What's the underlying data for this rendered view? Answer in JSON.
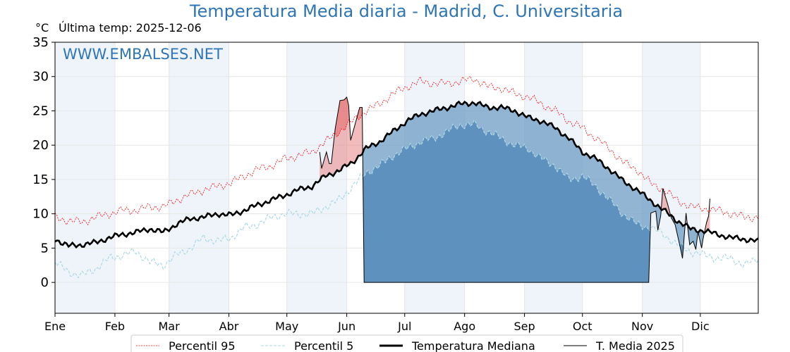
{
  "chart_data": {
    "type": "line",
    "title": "Temperatura Media diaria - Madrid, C. Universitaria",
    "unit_label": "°C",
    "subtitle": "Última temp: 2025-12-06",
    "watermark": "WWW.EMBALSES.NET",
    "ylim": [
      -4.5,
      35
    ],
    "xlim_days": [
      0,
      364
    ],
    "yticks": [
      0,
      5,
      10,
      15,
      20,
      25,
      30,
      35
    ],
    "months": [
      {
        "label": "Ene",
        "day": 0
      },
      {
        "label": "Feb",
        "day": 31
      },
      {
        "label": "Mar",
        "day": 59
      },
      {
        "label": "Abr",
        "day": 90
      },
      {
        "label": "May",
        "day": 120
      },
      {
        "label": "Jun",
        "day": 151
      },
      {
        "label": "Jul",
        "day": 181
      },
      {
        "label": "Ago",
        "day": 212
      },
      {
        "label": "Sep",
        "day": 243
      },
      {
        "label": "Oct",
        "day": 273
      },
      {
        "label": "Nov",
        "day": 304
      },
      {
        "label": "Dic",
        "day": 334
      }
    ],
    "grid": true,
    "legend_position": "bottom-center",
    "colors": {
      "p95": "#ff0000",
      "p5": "#add8e6",
      "median": "#000000",
      "t2025": "#000000",
      "above": "#e87a7a",
      "below": "#6e9cc4",
      "below_p5": "#3070a8",
      "band": "#eef4fa",
      "title": "#2e75b6"
    },
    "weekly_days": [
      0,
      7,
      14,
      21,
      28,
      35,
      42,
      49,
      56,
      63,
      70,
      77,
      84,
      91,
      98,
      105,
      112,
      119,
      126,
      133,
      140,
      147,
      154,
      161,
      168,
      175,
      182,
      189,
      196,
      203,
      210,
      217,
      224,
      231,
      238,
      245,
      252,
      259,
      266,
      273,
      280,
      287,
      294,
      301,
      308,
      315,
      322,
      329,
      336,
      343,
      350,
      357,
      364
    ],
    "series": [
      {
        "name": "Percentil 95",
        "key": "p95",
        "values": [
          9.5,
          9,
          8.8,
          9.5,
          10,
          10.5,
          10.5,
          11,
          11,
          12,
          12.8,
          13.5,
          14,
          14.5,
          15.5,
          16.5,
          17,
          18,
          18.5,
          19,
          20.5,
          22,
          23.5,
          25,
          26,
          27.5,
          28.5,
          29.3,
          29,
          29,
          29.3,
          29.7,
          28.5,
          28.3,
          27.5,
          27,
          26,
          25,
          23.5,
          22.5,
          21,
          19.5,
          17.5,
          16.5,
          14.5,
          13.5,
          12,
          11,
          10.8,
          10.5,
          10,
          9.5,
          9.5
        ]
      },
      {
        "name": "Percentil 5",
        "key": "p5",
        "values": [
          3,
          1.5,
          1,
          2,
          3.5,
          4,
          4.5,
          3,
          2.5,
          4,
          5,
          6.5,
          6,
          6.5,
          8,
          8.5,
          9.5,
          10,
          10,
          10,
          11,
          12,
          14,
          16,
          17,
          18.5,
          19.5,
          20.5,
          21,
          22,
          23,
          23,
          22,
          21,
          20,
          19.5,
          18,
          17,
          15,
          15.5,
          14,
          12,
          10,
          8.5,
          8,
          7,
          5.5,
          4.5,
          4,
          3.5,
          3.5,
          2.5,
          3.5
        ]
      },
      {
        "name": "Temperatura Mediana",
        "key": "median",
        "values": [
          6.3,
          5.3,
          5.5,
          5.8,
          6.5,
          7,
          7.3,
          7.8,
          7.3,
          8.5,
          9.3,
          9.5,
          10,
          9.8,
          10.5,
          11.3,
          12,
          12.7,
          13.5,
          14,
          15.5,
          16.3,
          17.5,
          19.5,
          20.5,
          22,
          23.5,
          24.5,
          25,
          25.5,
          26,
          26.2,
          25.5,
          25.5,
          25,
          24,
          23.5,
          22.5,
          21,
          19,
          18,
          16.5,
          14.8,
          13.5,
          12,
          10.5,
          9,
          7.8,
          7.5,
          7,
          6.5,
          6.3,
          6
        ]
      },
      {
        "name": "T. Media 2025",
        "key": "t2025",
        "points": [
          [
            137,
            19
          ],
          [
            138,
            16.6
          ],
          [
            140.5,
            19
          ],
          [
            142,
            17.3
          ],
          [
            143,
            17.3
          ],
          [
            145,
            22.4
          ],
          [
            147.5,
            26.5
          ],
          [
            149.6,
            26.6
          ],
          [
            151,
            27
          ],
          [
            152,
            25.8
          ],
          [
            153,
            20.7
          ],
          [
            155,
            22.7
          ],
          [
            157.7,
            25.5
          ],
          [
            159,
            25.5
          ],
          [
            160,
            0
          ],
          [
            307,
            0
          ],
          [
            307.3,
            0
          ],
          [
            308.4,
            10.1
          ],
          [
            311,
            10.4
          ],
          [
            312,
            7.6
          ],
          [
            313.5,
            9.7
          ],
          [
            314.6,
            13.7
          ],
          [
            317,
            11.5
          ],
          [
            319,
            9.4
          ],
          [
            321,
            8.4
          ],
          [
            323.7,
            5
          ],
          [
            324.8,
            3.5
          ],
          [
            326.6,
            10.1
          ],
          [
            328.5,
            5.5
          ],
          [
            330.3,
            6
          ],
          [
            331.7,
            4.8
          ],
          [
            332.8,
            7.4
          ],
          [
            334.7,
            5
          ],
          [
            335.4,
            6.3
          ],
          [
            337.2,
            8.7
          ],
          [
            338.3,
            9.7
          ],
          [
            339,
            12.2
          ]
        ]
      }
    ]
  }
}
